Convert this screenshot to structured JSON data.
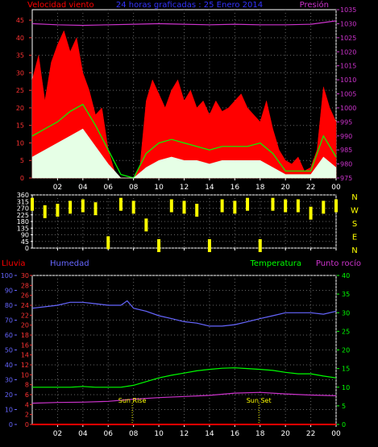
{
  "header": {
    "left": "Velocidad viento",
    "center": "24 horas graficadas : 25 Enero 2014",
    "right": "Presión"
  },
  "colors": {
    "wind_max": "#ff0000",
    "wind_avg": "#00ff00",
    "wind_gust": "#e6ffe6",
    "pressure": "#cc33cc",
    "direction": "#ffff00",
    "humidity": "#6666ff",
    "temperature": "#00ff00",
    "dewpoint": "#cc33cc",
    "rain": "#ff0000",
    "grid": "#666666",
    "axis": "#ffffff"
  },
  "chart_data": [
    {
      "type": "line",
      "id": "wind-pressure",
      "x_ticks": [
        "02",
        "04",
        "06",
        "08",
        "10",
        "12",
        "14",
        "16",
        "18",
        "20",
        "22",
        "00"
      ],
      "left_axis": {
        "ticks": [
          0,
          5,
          10,
          15,
          20,
          25,
          30,
          35,
          40,
          45
        ],
        "range": [
          0,
          48
        ]
      },
      "right_axis": {
        "ticks": [
          975,
          980,
          985,
          990,
          995,
          1000,
          1005,
          1010,
          1015,
          1020,
          1025,
          1030,
          1035
        ],
        "range": [
          975,
          1035
        ]
      },
      "series": [
        {
          "name": "Velocidad viento",
          "key": "wind_max",
          "x": [
            0,
            0.5,
            1,
            1.5,
            2,
            2.5,
            3,
            3.5,
            4,
            4.5,
            5,
            5.5,
            6,
            6.5,
            7,
            7.5,
            8,
            8.5,
            9,
            9.5,
            10,
            10.5,
            11,
            11.5,
            12,
            12.5,
            13,
            13.5,
            14,
            14.5,
            15,
            15.5,
            16,
            16.5,
            17,
            17.5,
            18,
            18.5,
            19,
            19.5,
            20,
            20.5,
            21,
            21.5,
            22,
            22.5,
            23,
            23.5,
            24
          ],
          "values": [
            28,
            35,
            22,
            33,
            38,
            42,
            36,
            40,
            30,
            25,
            18,
            20,
            8,
            2,
            0,
            0,
            0,
            3,
            22,
            28,
            24,
            20,
            25,
            28,
            22,
            25,
            20,
            22,
            18,
            22,
            19,
            20,
            22,
            24,
            20,
            18,
            16,
            22,
            14,
            8,
            5,
            4,
            6,
            2,
            3,
            8,
            26,
            20,
            16
          ]
        },
        {
          "name": "",
          "key": "wind_avg",
          "x": [
            0,
            1,
            2,
            3,
            4,
            5,
            6,
            7,
            8,
            9,
            10,
            11,
            12,
            13,
            14,
            15,
            16,
            17,
            18,
            19,
            20,
            21,
            22,
            23,
            24
          ],
          "values": [
            12,
            14,
            16,
            19,
            21,
            15,
            8,
            1,
            0,
            7,
            10,
            11,
            10,
            9,
            8,
            9,
            9,
            9,
            10,
            7,
            2,
            2,
            2,
            12,
            6
          ]
        },
        {
          "name": "",
          "key": "wind_gust",
          "x": [
            0,
            1,
            2,
            3,
            4,
            5,
            6,
            7,
            8,
            9,
            10,
            11,
            12,
            13,
            14,
            15,
            16,
            17,
            18,
            19,
            20,
            21,
            22,
            23,
            24
          ],
          "values": [
            6,
            8,
            10,
            12,
            14,
            9,
            4,
            0,
            0,
            3,
            5,
            6,
            5,
            5,
            4,
            5,
            5,
            5,
            5,
            3,
            1,
            1,
            1,
            6,
            3
          ]
        },
        {
          "name": "Presión",
          "key": "pressure",
          "axis": "right",
          "x": [
            0,
            2,
            4,
            6,
            8,
            10,
            12,
            14,
            16,
            18,
            20,
            22,
            24
          ],
          "values": [
            1030,
            1029.6,
            1029.4,
            1029.6,
            1029.8,
            1030,
            1029.8,
            1029.6,
            1029.8,
            1029.6,
            1029.6,
            1029.8,
            1031
          ]
        }
      ]
    },
    {
      "type": "scatter",
      "id": "wind-direction",
      "x_ticks": [
        "02",
        "04",
        "06",
        "08",
        "10",
        "12",
        "14",
        "16",
        "18",
        "20",
        "22",
        "00"
      ],
      "left_axis": {
        "ticks": [
          0,
          45,
          90,
          135,
          180,
          225,
          270,
          315,
          360
        ],
        "range": [
          0,
          360
        ]
      },
      "right_labels": [
        "N",
        "W",
        "S",
        "E",
        "N"
      ],
      "series": [
        {
          "name": "",
          "key": "direction",
          "x": [
            0,
            1,
            2,
            3,
            4,
            5,
            6,
            7,
            8,
            9,
            10,
            11,
            12,
            13,
            14,
            15,
            16,
            17,
            18,
            19,
            20,
            21,
            22,
            23,
            24
          ],
          "values": [
            340,
            290,
            300,
            320,
            330,
            310,
            80,
            340,
            320,
            200,
            60,
            330,
            320,
            300,
            60,
            330,
            320,
            340,
            60,
            340,
            330,
            330,
            280,
            320,
            330
          ]
        }
      ]
    },
    {
      "type": "line",
      "id": "temp-humidity",
      "header": {
        "rain": "Lluvia",
        "humidity": "Humedad",
        "temperature": "Temperatura",
        "dewpoint": "Punto rocío"
      },
      "x_ticks": [
        "02",
        "04",
        "06",
        "08",
        "10",
        "12",
        "14",
        "16",
        "18",
        "20",
        "22",
        "00"
      ],
      "humidity_axis": {
        "ticks": [
          0,
          10,
          20,
          30,
          40,
          50,
          60,
          70,
          80,
          90,
          100
        ],
        "range": [
          0,
          100
        ]
      },
      "rain_axis": {
        "ticks": [
          0,
          2,
          4,
          6,
          8,
          10,
          12,
          14,
          16,
          18,
          20,
          22,
          24,
          26,
          28,
          30
        ],
        "range": [
          0,
          30
        ]
      },
      "temp_axis": {
        "ticks": [
          0,
          5,
          10,
          15,
          20,
          25,
          30,
          35,
          40
        ],
        "range": [
          0,
          40
        ]
      },
      "annotations": [
        {
          "label": "Sun Rise",
          "x": 7.9
        },
        {
          "label": "Sun Set",
          "x": 17.9
        }
      ],
      "series": [
        {
          "name": "Humedad",
          "key": "humidity",
          "x": [
            0,
            1,
            2,
            3,
            4,
            5,
            6,
            7,
            7.5,
            8,
            9,
            10,
            11,
            12,
            13,
            14,
            15,
            16,
            17,
            18,
            19,
            20,
            21,
            22,
            23,
            24
          ],
          "values": [
            78,
            79,
            80,
            82,
            82,
            81,
            80,
            80,
            83,
            78,
            76,
            73,
            71,
            69,
            68,
            66,
            66,
            67,
            69,
            71,
            73,
            75,
            75,
            75,
            74,
            76
          ]
        },
        {
          "name": "Temperatura",
          "key": "temperature",
          "x": [
            0,
            1,
            2,
            3,
            4,
            5,
            6,
            7,
            8,
            9,
            10,
            11,
            12,
            13,
            14,
            15,
            16,
            17,
            18,
            19,
            20,
            21,
            22,
            23,
            24
          ],
          "values": [
            10,
            10,
            10,
            10,
            10.2,
            10,
            10,
            10,
            10.5,
            11.5,
            12.5,
            13.2,
            13.8,
            14.4,
            14.8,
            15.1,
            15.2,
            15,
            14.8,
            14.5,
            14,
            13.6,
            13.6,
            13,
            12.5
          ]
        },
        {
          "name": "Punto rocío",
          "key": "dewpoint",
          "x": [
            0,
            2,
            4,
            6,
            8,
            10,
            12,
            14,
            16,
            18,
            20,
            22,
            24
          ],
          "values": [
            5.7,
            5.9,
            6.0,
            6.2,
            6.8,
            7.2,
            7.5,
            7.8,
            8.4,
            8.6,
            8.2,
            7.9,
            7.7
          ]
        },
        {
          "name": "Lluvia",
          "key": "rain",
          "axis": "rain",
          "x": [
            0,
            24
          ],
          "values": [
            0,
            0
          ]
        }
      ]
    }
  ]
}
